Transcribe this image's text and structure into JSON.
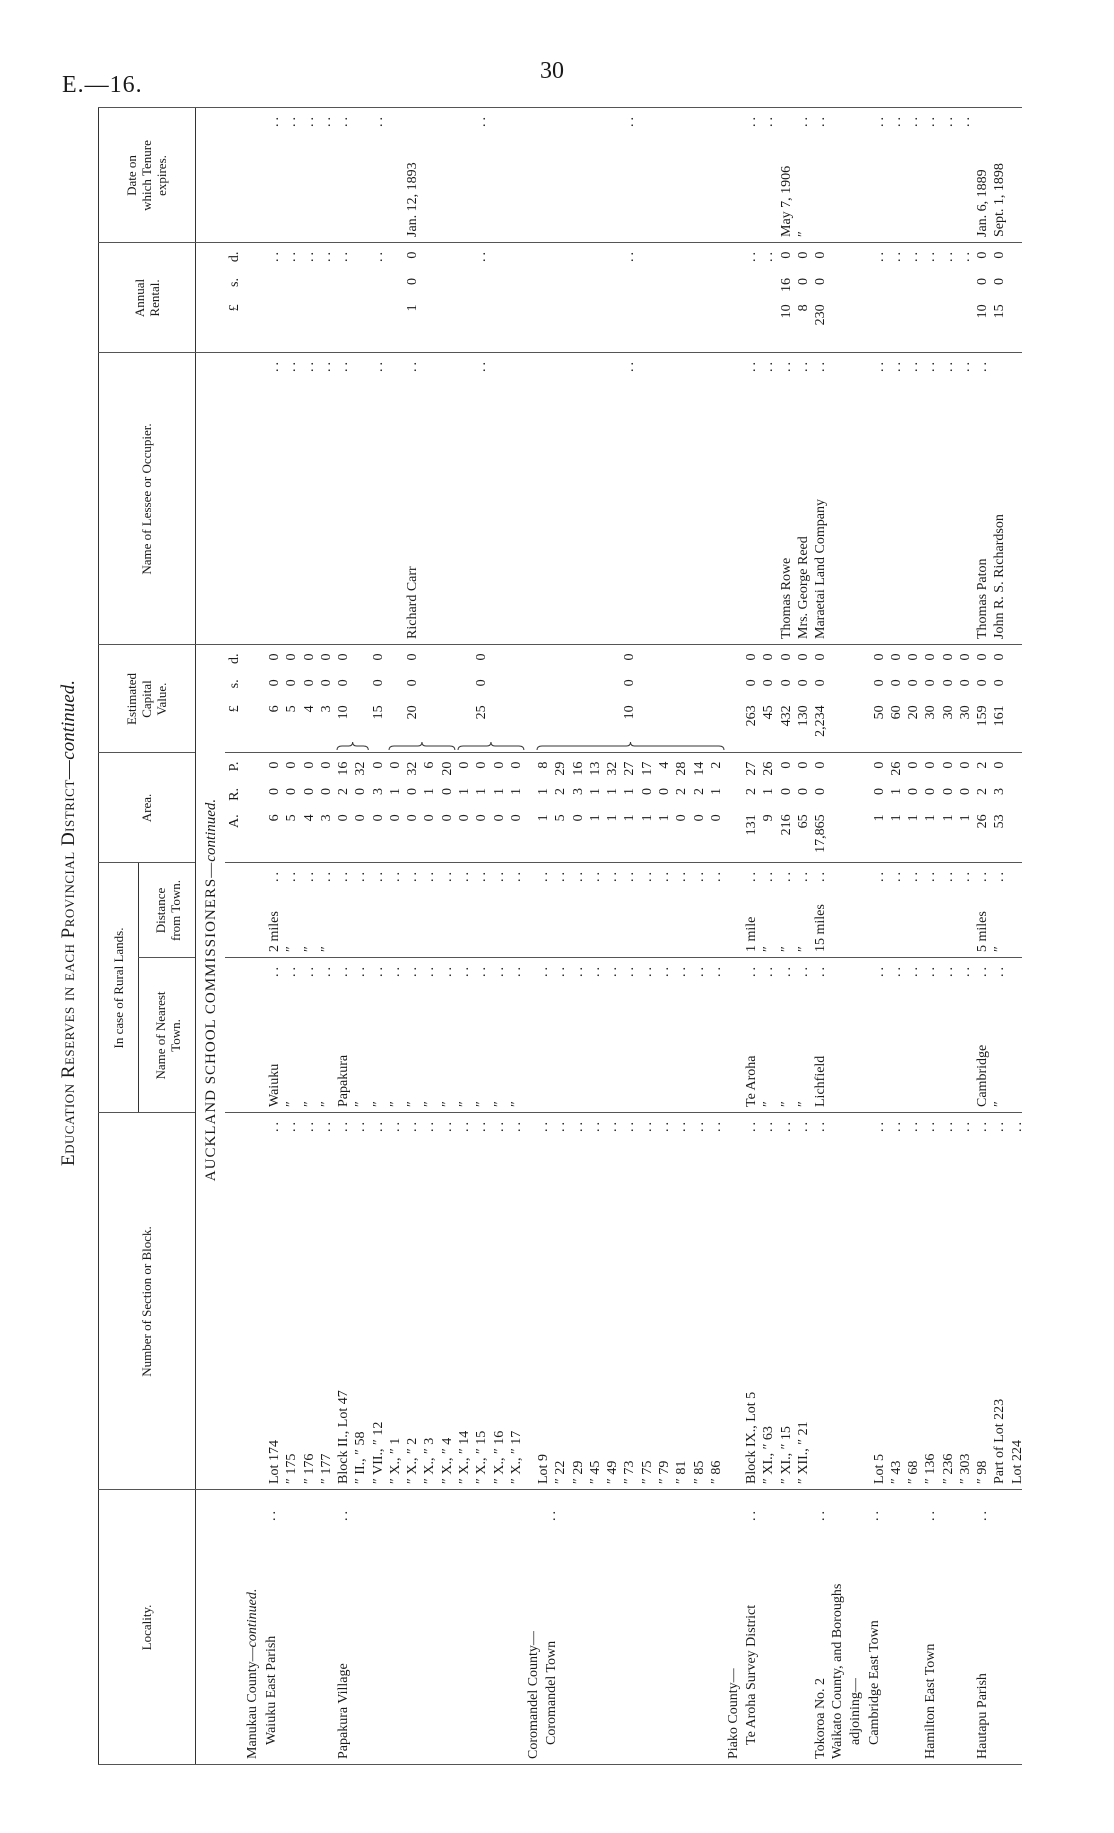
{
  "page": {
    "code": "E.—16.",
    "number": "30",
    "title": "Education Reserves in each Provincial District—",
    "title_cont": "continued."
  },
  "headers": {
    "locality": "Locality.",
    "section": "Number of Section or Block.",
    "rural": "In case of Rural Lands.",
    "town": "Name of Nearest Town.",
    "distance": "Distance from Town.",
    "area": "Area.",
    "value": "Estimated Capital Value.",
    "lessee": "Name of Lessee or Occupier.",
    "rental": "Annual Rental.",
    "date": "Date on which Tenure expires.",
    "area_units": [
      "A.",
      "R.",
      "P."
    ],
    "money_units": [
      "£",
      "s.",
      "d."
    ]
  },
  "section_heading": "AUCKLAND SCHOOL COMMISSIONERS—",
  "section_heading_cont": "continued.",
  "groups": [
    {
      "locality": [
        "Manukau County—continued.",
        "Waiuku East Parish .."
      ],
      "rows": [
        {
          "sec": "Lot 174 ..",
          "town": "Waiuku ..",
          "dist": "2 miles ..",
          "area": [
            "6",
            "0",
            "0"
          ],
          "value": [
            "6",
            "0",
            "0"
          ],
          "lessee": "..",
          "rental": "..",
          "date": ".."
        },
        {
          "sec": "″ 175 ..",
          "town": "″ ..",
          "dist": "″ ..",
          "area": [
            "5",
            "0",
            "0"
          ],
          "value": [
            "5",
            "0",
            "0"
          ],
          "lessee": "..",
          "rental": "..",
          "date": ".."
        },
        {
          "sec": "″ 176 ..",
          "town": "″ ..",
          "dist": "″ ..",
          "area": [
            "4",
            "0",
            "0"
          ],
          "value": [
            "4",
            "0",
            "0"
          ],
          "lessee": "..",
          "rental": "..",
          "date": ".."
        },
        {
          "sec": "″ 177 ..",
          "town": "″ ..",
          "dist": "″ ..",
          "area": [
            "3",
            "0",
            "0"
          ],
          "value": [
            "3",
            "0",
            "0"
          ],
          "lessee": "..",
          "rental": "..",
          "date": ".."
        }
      ]
    },
    {
      "locality": [
        "Papakura Village .."
      ],
      "rows": [
        {
          "sec": "Block II., Lot 47 ..",
          "town": "Papakura ..",
          "dist": "..",
          "area": [
            "0",
            "2",
            "16"
          ],
          "value": [
            "10",
            "0",
            "0"
          ],
          "value_span": 2,
          "lessee": "..",
          "rental": "..",
          "date": ".."
        },
        {
          "sec": "″ II., ″ 58 ..",
          "town": "″ ..",
          "dist": "..",
          "area": [
            "0",
            "0",
            "32"
          ]
        },
        {
          "sec": "″ VII., ″ 12 ..",
          "town": "″ ..",
          "dist": "..",
          "area": [
            "0",
            "3",
            "0"
          ],
          "value": [
            "15",
            "0",
            "0"
          ],
          "lessee": "..",
          "rental": "..",
          "date": ".."
        },
        {
          "sec": "″ X., ″ 1 ..",
          "town": "″ ..",
          "dist": "..",
          "area": [
            "0",
            "1",
            "0"
          ],
          "value_span": 4
        },
        {
          "sec": "″ X., ″ 2 ..",
          "town": "″ ..",
          "dist": "..",
          "area": [
            "0",
            "0",
            "32"
          ],
          "value": [
            "20",
            "0",
            "0"
          ],
          "lessee": "Richard Carr ..",
          "rental": [
            "1",
            "0",
            "0"
          ],
          "date": "Jan. 12, 1893"
        },
        {
          "sec": "″ X., ″ 3 ..",
          "town": "″ ..",
          "dist": "..",
          "area": [
            "0",
            "1",
            "6"
          ]
        },
        {
          "sec": "″ X., ″ 4 ..",
          "town": "″ ..",
          "dist": "..",
          "area": [
            "0",
            "0",
            "20"
          ]
        },
        {
          "sec": "″ X., ″ 14 ..",
          "town": "″ ..",
          "dist": "..",
          "area": [
            "0",
            "1",
            "0"
          ],
          "value_span": 4
        },
        {
          "sec": "″ X., ″ 15 ..",
          "town": "″ ..",
          "dist": "..",
          "area": [
            "0",
            "1",
            "0"
          ],
          "value": [
            "25",
            "0",
            "0"
          ],
          "lessee": "..",
          "rental": "..",
          "date": ".."
        },
        {
          "sec": "″ X., ″ 16 ..",
          "town": "″ ..",
          "dist": "..",
          "area": [
            "0",
            "1",
            "0"
          ]
        },
        {
          "sec": "″ X., ″ 17 ..",
          "town": "″ ..",
          "dist": "..",
          "area": [
            "0",
            "1",
            "0"
          ]
        }
      ]
    },
    {
      "locality": [
        "Coromandel County—",
        "Coromandel Town .."
      ],
      "rows": [
        {
          "sec": "Lot 9 ..",
          "town": "..",
          "dist": "..",
          "area": [
            "1",
            "1",
            "8"
          ],
          "value_span": 11
        },
        {
          "sec": "″ 22 ..",
          "town": "..",
          "dist": "..",
          "area": [
            "5",
            "2",
            "29"
          ]
        },
        {
          "sec": "″ 29 ..",
          "town": "..",
          "dist": "..",
          "area": [
            "0",
            "3",
            "16"
          ]
        },
        {
          "sec": "″ 45 ..",
          "town": "..",
          "dist": "..",
          "area": [
            "1",
            "1",
            "13"
          ]
        },
        {
          "sec": "″ 49 ..",
          "town": "..",
          "dist": "..",
          "area": [
            "1",
            "1",
            "32"
          ]
        },
        {
          "sec": "″ 73 ..",
          "town": "..",
          "dist": "..",
          "area": [
            "1",
            "1",
            "27"
          ],
          "value": [
            "10",
            "0",
            "0"
          ],
          "lessee": "..",
          "rental": "..",
          "date": ".."
        },
        {
          "sec": "″ 75 ..",
          "town": "..",
          "dist": "..",
          "area": [
            "1",
            "0",
            "17"
          ]
        },
        {
          "sec": "″ 79 ..",
          "town": "..",
          "dist": "..",
          "area": [
            "1",
            "0",
            "4"
          ]
        },
        {
          "sec": "″ 81 ..",
          "town": "..",
          "dist": "..",
          "area": [
            "0",
            "2",
            "28"
          ]
        },
        {
          "sec": "″ 85 ..",
          "town": "..",
          "dist": "..",
          "area": [
            "0",
            "2",
            "14"
          ]
        },
        {
          "sec": "″ 86 ..",
          "town": "..",
          "dist": "..",
          "area": [
            "0",
            "1",
            "2"
          ]
        }
      ]
    },
    {
      "locality": [
        "Piako County—",
        "Te Aroha Survey District .."
      ],
      "rows": [
        {
          "sec": "Block IX., Lot 5 ..",
          "town": "Te Aroha ..",
          "dist": "1 mile ..",
          "area": [
            "131",
            "2",
            "27"
          ],
          "value": [
            "263",
            "0",
            "0"
          ],
          "lessee": "..",
          "rental": "..",
          "date": ".."
        },
        {
          "sec": "″ XI., ″ 63 ..",
          "town": "″ ..",
          "dist": "″ ..",
          "area": [
            "9",
            "1",
            "26"
          ],
          "value": [
            "45",
            "0",
            "0"
          ],
          "lessee": "..",
          "rental": "..",
          "date": ".."
        },
        {
          "sec": "″ XI., ″ 15 ..",
          "town": "″ ..",
          "dist": "″ ..",
          "area": [
            "216",
            "0",
            "0"
          ],
          "value": [
            "432",
            "0",
            "0"
          ],
          "lessee": "Thomas Rowe ..",
          "rental": [
            "10",
            "16",
            "0"
          ],
          "date": "May 7, 1906"
        },
        {
          "sec": "″ XII., ″ 21 ..",
          "town": "″ ..",
          "dist": "″ ..",
          "area": [
            "65",
            "0",
            "0"
          ],
          "value": [
            "130",
            "0",
            "0"
          ],
          "lessee": "Mrs. George Reed ..",
          "rental": [
            "8",
            "0",
            "0"
          ],
          "date": "″ .."
        }
      ]
    },
    {
      "locality": [
        "Tokoroa No. 2 .."
      ],
      "rows": [
        {
          "sec": "..",
          "town": "Lichfield ..",
          "dist": "15 miles ..",
          "area": [
            "17,865",
            "0",
            "0"
          ],
          "value": [
            "2,234",
            "0",
            "0"
          ],
          "lessee": "Maraetai Land Company ..",
          "rental": [
            "230",
            "0",
            "0"
          ],
          "date": ".."
        }
      ]
    },
    {
      "locality": [
        "Waikato County, and Boroughs",
        "adjoining—",
        "Cambridge East Town .."
      ],
      "rows": [
        {
          "sec": "Lot 5 ..",
          "town": "..",
          "dist": "..",
          "area": [
            "1",
            "0",
            "0"
          ],
          "value": [
            "50",
            "0",
            "0"
          ],
          "lessee": "..",
          "rental": "..",
          "date": ".."
        },
        {
          "sec": "″ 43 ..",
          "town": "..",
          "dist": "..",
          "area": [
            "1",
            "1",
            "26"
          ],
          "value": [
            "60",
            "0",
            "0"
          ],
          "lessee": "..",
          "rental": "..",
          "date": ".."
        },
        {
          "sec": "″ 68 ..",
          "town": "..",
          "dist": "..",
          "area": [
            "1",
            "0",
            "0"
          ],
          "value": [
            "20",
            "0",
            "0"
          ],
          "lessee": "..",
          "rental": "..",
          "date": ".."
        }
      ]
    },
    {
      "locality": [
        "Hamilton East Town .."
      ],
      "rows": [
        {
          "sec": "″ 136 ..",
          "town": "..",
          "dist": "..",
          "area": [
            "1",
            "0",
            "0"
          ],
          "value": [
            "30",
            "0",
            "0"
          ],
          "lessee": "..",
          "rental": "..",
          "date": ".."
        },
        {
          "sec": "″ 236 ..",
          "town": "..",
          "dist": "..",
          "area": [
            "1",
            "0",
            "0"
          ],
          "value": [
            "30",
            "0",
            "0"
          ],
          "lessee": "..",
          "rental": "..",
          "date": ".."
        },
        {
          "sec": "″ 303 ..",
          "town": "..",
          "dist": "..",
          "area": [
            "1",
            "0",
            "0"
          ],
          "value": [
            "30",
            "0",
            "0"
          ],
          "lessee": "..",
          "rental": "..",
          "date": ".."
        }
      ]
    },
    {
      "locality": [
        "Hautapu Parish .."
      ],
      "rows": [
        {
          "sec": "″ 98 ..",
          "town": "Cambridge ..",
          "dist": "5 miles ..",
          "area": [
            "26",
            "2",
            "2"
          ],
          "value": [
            "159",
            "0",
            "0"
          ],
          "lessee": "Thomas Paton ..",
          "rental": [
            "10",
            "0",
            "0"
          ],
          "date": "Jan. 6, 1889"
        },
        {
          "sec": "Part of Lot 223 ..",
          "town": "″ ..",
          "dist": "″ ..",
          "area": [
            "53",
            "3",
            "0"
          ],
          "value": [
            "161",
            "0",
            "0"
          ],
          "lessee": "John R. S. Richardson",
          "rental": [
            "15",
            "0",
            "0"
          ],
          "date": "Sept. 1, 1898"
        },
        {
          "sec": "Lot 224 .."
        }
      ]
    }
  ]
}
